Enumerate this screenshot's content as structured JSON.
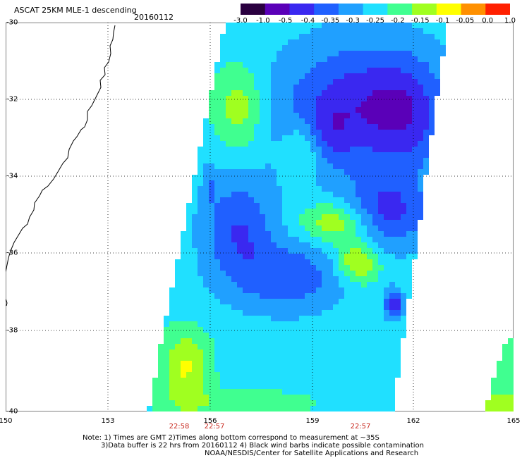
{
  "header": {
    "title": "ASCAT 25KM MLE-1 descending",
    "date": "20160112"
  },
  "colorbar": {
    "colors": [
      "#2a0040",
      "#5a00b8",
      "#3a28f0",
      "#2060ff",
      "#20a0ff",
      "#20e0ff",
      "#40ff90",
      "#a0ff20",
      "#ffff00",
      "#ff9000",
      "#ff2000"
    ],
    "ticks": [
      "-3.0",
      "-1.0",
      "-0.5",
      "-0.4",
      "-0.35",
      "-0.3",
      "-0.25",
      "-0.2",
      "-0.15",
      "-0.1",
      "-0.05",
      "0.0",
      "1.0"
    ]
  },
  "axes": {
    "lat_labels": [
      "-30",
      "-32",
      "-34",
      "-36",
      "-38",
      "-40"
    ],
    "lon_labels": [
      "150",
      "153",
      "156",
      "159",
      "162",
      "165"
    ]
  },
  "times": [
    "22:58",
    "22:57",
    "22:57"
  ],
  "notes": {
    "line1": "Note: 1) Times are GMT 2)Times along bottom correspond to measurement at ~35S",
    "line2": "3)Data buffer is 22 hrs from 20160112 4) Black wind barbs indicate possible contamination",
    "line3": "NOAA/NESDIS/Center for Satellite Applications and Research"
  }
}
